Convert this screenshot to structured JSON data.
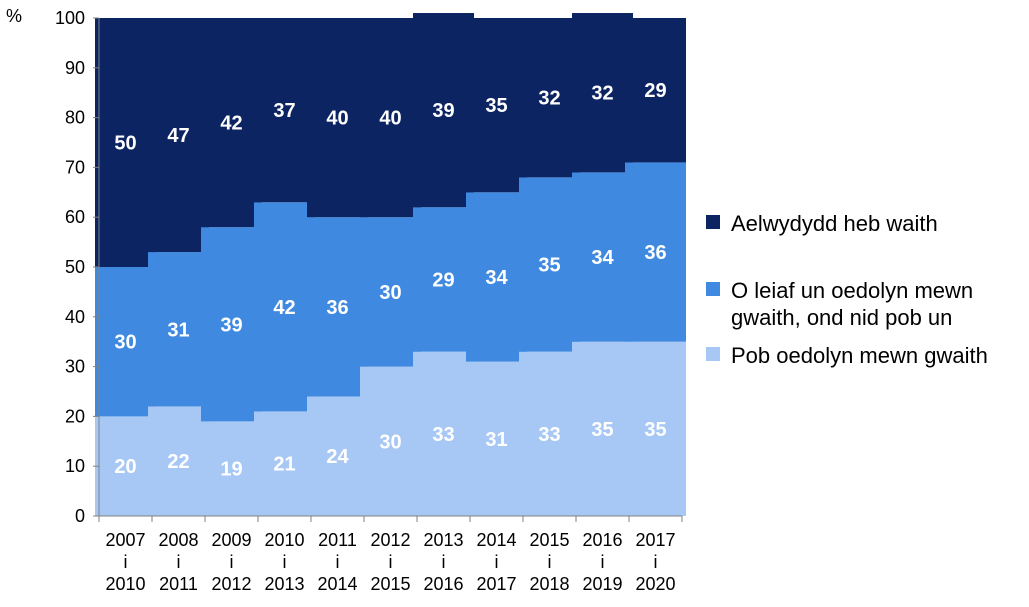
{
  "chart_data": {
    "type": "bar",
    "stacked": true,
    "title": "",
    "ylabel": "%",
    "xlabel": "",
    "ylim": [
      0,
      100
    ],
    "yticks": [
      0,
      10,
      20,
      30,
      40,
      50,
      60,
      70,
      80,
      90,
      100
    ],
    "grid": false,
    "legend_position": "right",
    "categories": [
      [
        "2007",
        "i",
        "2010"
      ],
      [
        "2008",
        "i",
        "2011"
      ],
      [
        "2009",
        "i",
        "2012"
      ],
      [
        "2010",
        "i",
        "2013"
      ],
      [
        "2011",
        "i",
        "2014"
      ],
      [
        "2012",
        "i",
        "2015"
      ],
      [
        "2013",
        "i",
        "2016"
      ],
      [
        "2014",
        "i",
        "2017"
      ],
      [
        "2015",
        "i",
        "2018"
      ],
      [
        "2016",
        "i",
        "2019"
      ],
      [
        "2017",
        "i",
        "2020"
      ]
    ],
    "series": [
      {
        "name": "Pob oedolyn mewn gwaith",
        "color": "#a7c8f4",
        "values": [
          20,
          22,
          19,
          21,
          24,
          30,
          33,
          31,
          33,
          35,
          35
        ]
      },
      {
        "name": "O leiaf un oedolyn mewn gwaith, ond nid pob un",
        "legend_lines": [
          "O leiaf un oedolyn mewn",
          "gwaith, ond nid pob un"
        ],
        "color": "#3f8ae0",
        "values": [
          30,
          31,
          39,
          42,
          36,
          30,
          29,
          34,
          35,
          34,
          36
        ]
      },
      {
        "name": "Aelwydydd heb waith",
        "color": "#0c2462",
        "values": [
          50,
          47,
          42,
          37,
          40,
          40,
          39,
          35,
          32,
          32,
          29
        ]
      }
    ],
    "legend_order": [
      2,
      1,
      0
    ]
  }
}
